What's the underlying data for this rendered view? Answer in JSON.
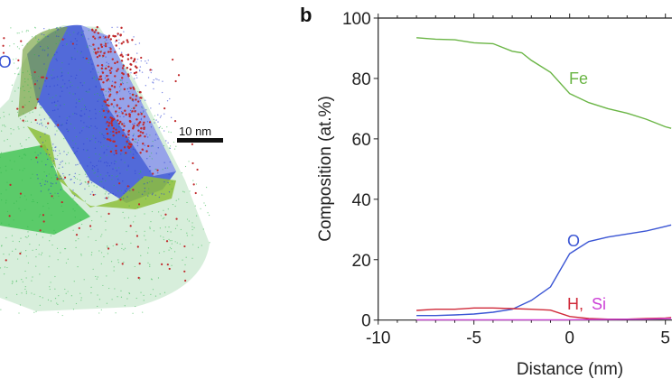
{
  "panel_a": {
    "element_label": "O",
    "element_label_color": "#3a55d4",
    "scale_bar_label": "10 nm",
    "colors": {
      "fe": "#2db84a",
      "o": "#2b3fd6",
      "h": "#c0282a",
      "isosurface": "#9acd32"
    }
  },
  "chart_data": {
    "panel_label": "b",
    "type": "line",
    "xlabel": "Distance (nm)",
    "ylabel": "Composition (at.%)",
    "xlim": [
      -10,
      5.5
    ],
    "ylim": [
      0,
      100
    ],
    "xticks": [
      "-10",
      "-5",
      "0",
      "5"
    ],
    "yticks": [
      "0",
      "20",
      "40",
      "60",
      "80",
      "100"
    ],
    "grid": false,
    "series": [
      {
        "name": "Fe",
        "color": "#6ab545",
        "x": [
          -8,
          -7,
          -6,
          -5,
          -4,
          -3,
          -2.5,
          -2,
          -1,
          0,
          1,
          2,
          3,
          4,
          5,
          5.3
        ],
        "y": [
          93.5,
          93,
          92.8,
          91.8,
          91.5,
          89,
          88.5,
          86,
          82,
          75,
          72,
          70,
          68.5,
          66.5,
          64,
          63.5
        ]
      },
      {
        "name": "O",
        "color": "#3a55d4",
        "x": [
          -8,
          -7,
          -6,
          -5,
          -4,
          -3,
          -2,
          -1,
          0,
          1,
          2,
          3,
          4,
          5,
          5.3
        ],
        "y": [
          1.5,
          1.5,
          1.7,
          2,
          2.6,
          3.6,
          6.5,
          11,
          22,
          26,
          27.5,
          28.5,
          29.5,
          31,
          31.5
        ]
      },
      {
        "name": "H",
        "color": "#d02a3a",
        "x": [
          -8,
          -7,
          -6,
          -5,
          -4,
          -3,
          -2,
          -1,
          0,
          1,
          2,
          3,
          4,
          5,
          5.3
        ],
        "y": [
          3.2,
          3.6,
          3.6,
          4,
          4,
          3.8,
          3.6,
          3.3,
          1.2,
          0.5,
          0.3,
          0.3,
          0.5,
          0.7,
          0.8
        ]
      },
      {
        "name": "Si",
        "color": "#cc3fd6",
        "x": [
          -8,
          -6,
          -4,
          -2,
          0,
          2,
          4,
          5.3
        ],
        "y": [
          0.1,
          0.1,
          0.1,
          0.1,
          0.1,
          0.2,
          0.3,
          0.5
        ]
      }
    ],
    "annotations": [
      {
        "text": "Fe",
        "color": "#6ab545"
      },
      {
        "text": "O",
        "color": "#3a55d4"
      },
      {
        "text": "H,",
        "color": "#d02a3a"
      },
      {
        "text": "Si",
        "color": "#cc3fd6"
      }
    ]
  }
}
